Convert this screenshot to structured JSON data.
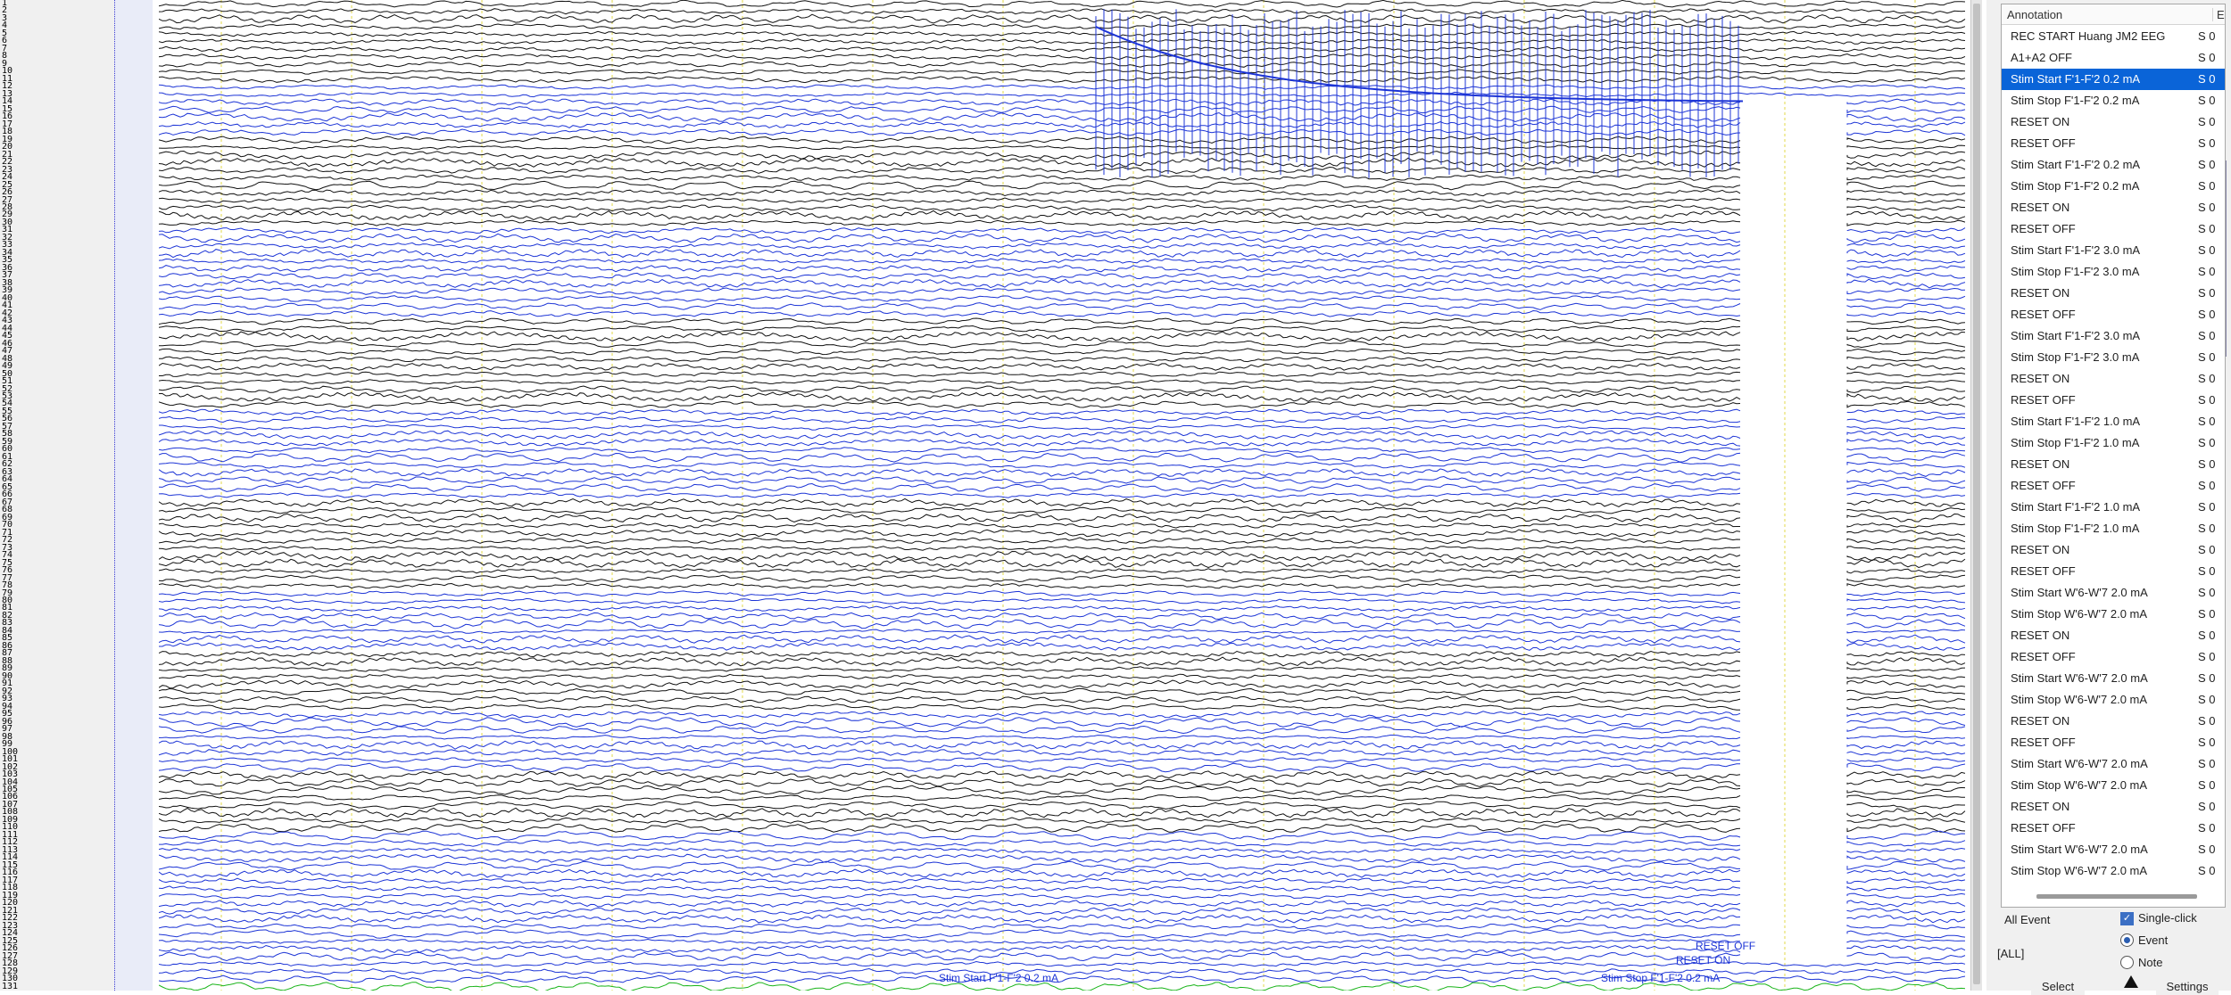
{
  "window": {
    "channel_numbers": [
      "1",
      "2",
      "3",
      "4",
      "5",
      "6",
      "7",
      "8",
      "9",
      "10",
      "11",
      "12",
      "13",
      "14",
      "15",
      "16",
      "17",
      "18",
      "19",
      "20",
      "21",
      "22",
      "23",
      "24",
      "25",
      "26",
      "27",
      "28",
      "29",
      "30",
      "31",
      "32",
      "33",
      "34",
      "35",
      "36",
      "37",
      "38",
      "39",
      "40",
      "41",
      "42",
      "43",
      "44",
      "45",
      "46",
      "47",
      "48",
      "49",
      "50",
      "51",
      "52",
      "53",
      "54",
      "55",
      "56",
      "57",
      "58",
      "59",
      "60",
      "61",
      "62",
      "63",
      "64",
      "65",
      "66",
      "67",
      "68",
      "69",
      "70",
      "71",
      "72",
      "73",
      "74",
      "75",
      "76",
      "77",
      "78",
      "79",
      "80",
      "81",
      "82",
      "83",
      "84",
      "85",
      "86",
      "87",
      "88",
      "89",
      "90",
      "91",
      "92",
      "93",
      "94",
      "95",
      "96",
      "97",
      "98",
      "99",
      "100",
      "101",
      "102",
      "103",
      "104",
      "105",
      "106",
      "107",
      "108",
      "109",
      "110",
      "111",
      "112",
      "113",
      "114",
      "115",
      "116",
      "117",
      "118",
      "119",
      "120",
      "121",
      "122",
      "123",
      "124",
      "125",
      "126",
      "127",
      "128",
      "129",
      "130",
      "131"
    ]
  },
  "annotation_panel": {
    "header_title": "Annotation",
    "header_col2": "E",
    "items": [
      {
        "text": "REC START Huang JM2 EEG",
        "type": "S 0",
        "selected": false
      },
      {
        "text": "A1+A2 OFF",
        "type": "S 0",
        "selected": false
      },
      {
        "text": "Stim Start F'1-F'2 0.2 mA",
        "type": "S 0",
        "selected": true
      },
      {
        "text": "Stim Stop F'1-F'2 0.2 mA",
        "type": "S 0",
        "selected": false
      },
      {
        "text": "RESET ON",
        "type": "S 0",
        "selected": false
      },
      {
        "text": "RESET OFF",
        "type": "S 0",
        "selected": false
      },
      {
        "text": "Stim Start F'1-F'2 0.2 mA",
        "type": "S 0",
        "selected": false
      },
      {
        "text": "Stim Stop F'1-F'2 0.2 mA",
        "type": "S 0",
        "selected": false
      },
      {
        "text": "RESET ON",
        "type": "S 0",
        "selected": false
      },
      {
        "text": "RESET OFF",
        "type": "S 0",
        "selected": false
      },
      {
        "text": "Stim Start F'1-F'2 3.0 mA",
        "type": "S 0",
        "selected": false
      },
      {
        "text": "Stim Stop F'1-F'2 3.0 mA",
        "type": "S 0",
        "selected": false
      },
      {
        "text": "RESET ON",
        "type": "S 0",
        "selected": false
      },
      {
        "text": "RESET OFF",
        "type": "S 0",
        "selected": false
      },
      {
        "text": "Stim Start F'1-F'2 3.0 mA",
        "type": "S 0",
        "selected": false
      },
      {
        "text": "Stim Stop F'1-F'2 3.0 mA",
        "type": "S 0",
        "selected": false
      },
      {
        "text": "RESET ON",
        "type": "S 0",
        "selected": false
      },
      {
        "text": "RESET OFF",
        "type": "S 0",
        "selected": false
      },
      {
        "text": "Stim Start F'1-F'2 1.0 mA",
        "type": "S 0",
        "selected": false
      },
      {
        "text": "Stim Stop F'1-F'2 1.0 mA",
        "type": "S 0",
        "selected": false
      },
      {
        "text": "RESET ON",
        "type": "S 0",
        "selected": false
      },
      {
        "text": "RESET OFF",
        "type": "S 0",
        "selected": false
      },
      {
        "text": "Stim Start F'1-F'2 1.0 mA",
        "type": "S 0",
        "selected": false
      },
      {
        "text": "Stim Stop F'1-F'2 1.0 mA",
        "type": "S 0",
        "selected": false
      },
      {
        "text": "RESET ON",
        "type": "S 0",
        "selected": false
      },
      {
        "text": "RESET OFF",
        "type": "S 0",
        "selected": false
      },
      {
        "text": "Stim Start W'6-W'7 2.0 mA",
        "type": "S 0",
        "selected": false
      },
      {
        "text": "Stim Stop W'6-W'7 2.0 mA",
        "type": "S 0",
        "selected": false
      },
      {
        "text": "RESET ON",
        "type": "S 0",
        "selected": false
      },
      {
        "text": "RESET OFF",
        "type": "S 0",
        "selected": false
      },
      {
        "text": "Stim Start W'6-W'7 2.0 mA",
        "type": "S 0",
        "selected": false
      },
      {
        "text": "Stim Stop W'6-W'7 2.0 mA",
        "type": "S 0",
        "selected": false
      },
      {
        "text": "RESET ON",
        "type": "S 0",
        "selected": false
      },
      {
        "text": "RESET OFF",
        "type": "S 0",
        "selected": false
      },
      {
        "text": "Stim Start W'6-W'7 2.0 mA",
        "type": "S 0",
        "selected": false
      },
      {
        "text": "Stim Stop W'6-W'7 2.0 mA",
        "type": "S 0",
        "selected": false
      },
      {
        "text": "RESET ON",
        "type": "S 0",
        "selected": false
      },
      {
        "text": "RESET OFF",
        "type": "S 0",
        "selected": false
      },
      {
        "text": "Stim Start W'6-W'7 2.0 mA",
        "type": "S 0",
        "selected": false
      },
      {
        "text": "Stim Stop W'6-W'7 2.0 mA",
        "type": "S 0",
        "selected": false
      }
    ]
  },
  "filter": {
    "all_event_label": "All Event",
    "all_value": "[ALL]",
    "single_click_label": "Single-click",
    "single_click_checked": true,
    "event_label": "Event",
    "note_label": "Note",
    "selected_mode": "Event"
  },
  "buttons": {
    "select_label": "Select",
    "settings_label": "Settings"
  },
  "trace_annotations": [
    {
      "text": "Stim Start F'1-F'2 0.2 mA"
    },
    {
      "text": "Stim Stop F'1-F'2 0.2 mA"
    },
    {
      "text": "RESET ON"
    },
    {
      "text": "RESET OFF"
    }
  ],
  "colors": {
    "trace_black": "#111111",
    "trace_blue": "#1c34d6",
    "trace_green": "#19b419",
    "grid_yellow": "#e3d84a",
    "selection": "#0a64d8"
  }
}
